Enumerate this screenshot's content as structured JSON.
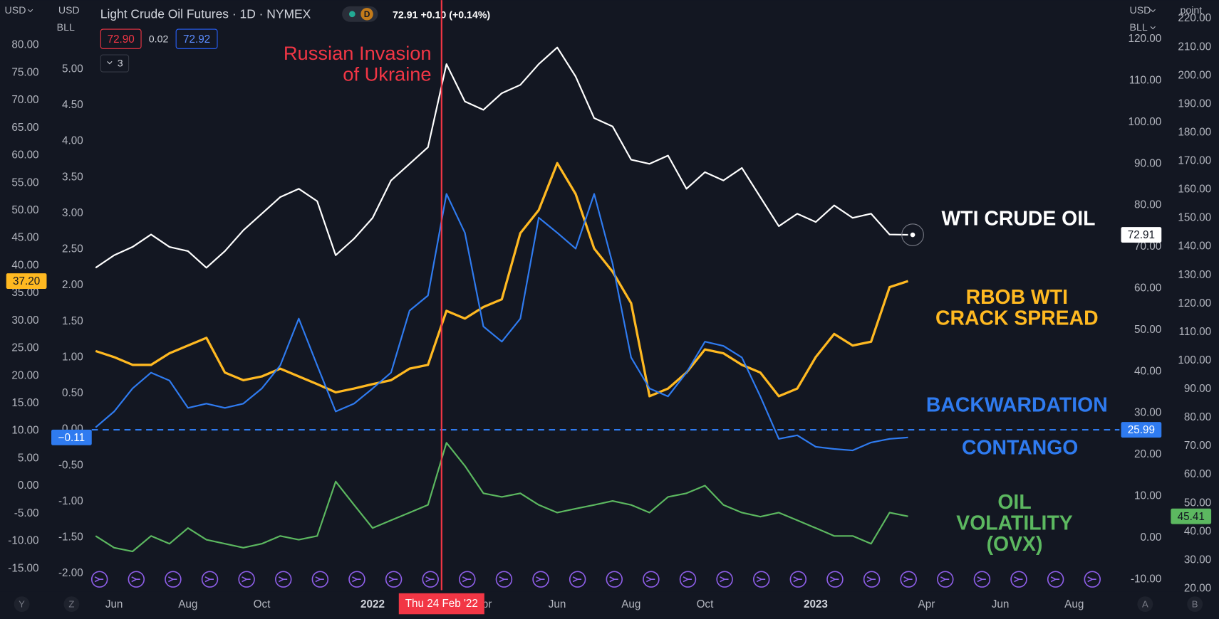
{
  "header": {
    "title": "Light Crude Oil Futures · 1D · NYMEX",
    "source_badge": "D",
    "quote": "72.91 +0.10 (+0.14%)",
    "bid": "72.90",
    "spread": "0.02",
    "ask": "72.92",
    "indicators": "3"
  },
  "axis_headers": {
    "left_1": "USD",
    "left_2_currency": "USD",
    "left_2_unit": "BLL",
    "right_1_currency": "USD",
    "right_1_unit": "BLL",
    "right_2": "point"
  },
  "footer": {
    "left_buttons": [
      "Y",
      "Z"
    ],
    "right_buttons": [
      "A",
      "B"
    ]
  },
  "chart_data": {
    "type": "line",
    "categories": [
      null,
      "Jun",
      null,
      null,
      null,
      "Aug",
      null,
      null,
      null,
      "Oct",
      null,
      null,
      null,
      null,
      null,
      "2022",
      null,
      null,
      null,
      null,
      null,
      "Apr",
      null,
      null,
      null,
      "Jun",
      null,
      null,
      null,
      "Aug",
      null,
      null,
      null,
      "Oct",
      null,
      null,
      null,
      null,
      null,
      "2023",
      null,
      null,
      null,
      null,
      null,
      "Apr",
      null,
      null,
      null,
      "Jun",
      null,
      null,
      null,
      "Aug",
      null
    ],
    "series": [
      {
        "name": "RBOB WTI CRACK SPREAD",
        "color": "#ffb921",
        "axis": "y",
        "last_label": "37.20",
        "values": [
          24.5,
          23.4,
          22.0,
          22.0,
          24.1,
          25.5,
          26.9,
          20.6,
          19.2,
          19.9,
          21.3,
          19.9,
          18.5,
          17.0,
          17.7,
          18.5,
          19.2,
          21.3,
          22.0,
          31.8,
          30.4,
          32.5,
          33.9,
          45.9,
          50.1,
          58.6,
          53.0,
          43.1,
          38.9,
          33.2,
          16.3,
          17.7,
          20.6,
          24.8,
          24.1,
          22.0,
          20.6,
          16.3,
          17.7,
          23.4,
          27.6,
          25.5,
          26.2,
          36.1,
          37.2,
          null,
          null,
          null,
          null,
          null,
          null,
          null,
          null,
          null,
          null
        ]
      },
      {
        "name": "BACKWARDATION",
        "color": "#2f7bf0",
        "axis": "y2",
        "last_label": "−0.11",
        "values": [
          0.03,
          0.25,
          0.57,
          0.79,
          0.68,
          0.3,
          0.36,
          0.3,
          0.36,
          0.57,
          0.89,
          1.54,
          0.89,
          0.25,
          0.36,
          0.57,
          0.79,
          1.65,
          1.86,
          3.27,
          2.73,
          1.43,
          1.22,
          1.54,
          2.94,
          2.73,
          2.51,
          3.27,
          2.3,
          1.0,
          0.57,
          0.46,
          0.79,
          1.22,
          1.16,
          1.0,
          0.46,
          -0.13,
          -0.08,
          -0.24,
          -0.27,
          -0.29,
          -0.18,
          -0.13,
          -0.11,
          null,
          null,
          null,
          null,
          null,
          null,
          null,
          null,
          null,
          null
        ]
      },
      {
        "name": "WTI CRUDE OIL",
        "color": "#ffffff",
        "axis": "y3",
        "values": [
          65,
          68,
          70,
          73,
          70,
          69,
          65,
          69,
          74,
          78,
          82,
          84,
          81,
          68,
          72,
          77,
          86,
          90,
          94,
          114,
          105,
          103,
          107,
          109,
          114,
          118,
          111,
          101,
          99,
          91,
          90,
          92,
          84,
          88,
          86,
          89,
          82,
          75,
          78,
          76,
          80,
          77,
          78,
          73,
          72.91,
          null,
          null,
          null,
          null,
          null,
          null,
          null,
          null,
          null,
          null
        ]
      },
      {
        "name": "OIL VOLATILITY (OVX)",
        "color": "#5cb860",
        "axis": "y4",
        "values": [
          38.5,
          34.4,
          33.1,
          38.5,
          35.8,
          41.3,
          37.2,
          35.8,
          34.4,
          35.8,
          38.5,
          37.2,
          38.5,
          57.6,
          49.4,
          41.3,
          44.0,
          46.7,
          49.4,
          71.2,
          63.1,
          53.5,
          52.2,
          53.5,
          49.4,
          46.7,
          48.1,
          49.4,
          50.8,
          49.4,
          46.7,
          52.2,
          53.5,
          56.2,
          49.4,
          46.7,
          45.3,
          46.7,
          44.0,
          41.3,
          38.5,
          38.5,
          35.8,
          46.7,
          45.41,
          null,
          null,
          null,
          null,
          null,
          null,
          null,
          null,
          null,
          null
        ]
      }
    ],
    "hline": {
      "value": 25.99,
      "axis": "y3",
      "color": "#2f7bf0"
    },
    "contango_label": "CONTANGO",
    "event": {
      "date_label": "Thu 24 Feb '22",
      "text": "Russian Invasion of Ukraine",
      "color": "#f23645"
    },
    "ylim": [
      -18.9,
      88.2
    ],
    "yticks": [
      {
        "value": -15,
        "label": "-15.00"
      },
      {
        "value": -10,
        "label": "-10.00"
      },
      {
        "value": -5,
        "label": "-5.00"
      },
      {
        "value": 0,
        "label": "0.00"
      },
      {
        "value": 5,
        "label": "5.00"
      },
      {
        "value": 10,
        "label": "10.00"
      },
      {
        "value": 15,
        "label": "15.00"
      },
      {
        "value": 20,
        "label": "20.00"
      },
      {
        "value": 25,
        "label": "25.00"
      },
      {
        "value": 30,
        "label": "30.00"
      },
      {
        "value": 35,
        "label": "35.00"
      },
      {
        "value": 40,
        "label": "40.00"
      },
      {
        "value": 45,
        "label": "45.00"
      },
      {
        "value": 50,
        "label": "50.00"
      },
      {
        "value": 55,
        "label": "55.00"
      },
      {
        "value": 60,
        "label": "60.00"
      },
      {
        "value": 65,
        "label": "65.00"
      },
      {
        "value": 70,
        "label": "70.00"
      },
      {
        "value": 75,
        "label": "75.00"
      },
      {
        "value": 80,
        "label": "80.00"
      }
    ],
    "y2lim": [
      -2.23,
      5.96
    ],
    "y2ticks": [
      {
        "value": -2,
        "label": "-2.00"
      },
      {
        "value": -1.5,
        "label": "-1.50"
      },
      {
        "value": -1,
        "label": "-1.00"
      },
      {
        "value": -0.5,
        "label": "-0.50"
      },
      {
        "value": 0,
        "label": "0.00"
      },
      {
        "value": 0.5,
        "label": "0.50"
      },
      {
        "value": 1,
        "label": "1.00"
      },
      {
        "value": 1.5,
        "label": "1.50"
      },
      {
        "value": 2,
        "label": "2.00"
      },
      {
        "value": 2.5,
        "label": "2.50"
      },
      {
        "value": 3,
        "label": "3.00"
      },
      {
        "value": 3.5,
        "label": "3.50"
      },
      {
        "value": 4,
        "label": "4.00"
      },
      {
        "value": 4.5,
        "label": "4.50"
      },
      {
        "value": 5,
        "label": "5.00"
      }
    ],
    "y3lim": [
      -12.6,
      129.4
    ],
    "y3ticks": [
      {
        "value": -10,
        "label": "-10.00"
      },
      {
        "value": 0,
        "label": "0.00"
      },
      {
        "value": 10,
        "label": "10.00"
      },
      {
        "value": 20,
        "label": "20.00"
      },
      {
        "value": 30,
        "label": "30.00"
      },
      {
        "value": 40,
        "label": "40.00"
      },
      {
        "value": 50,
        "label": "50.00"
      },
      {
        "value": 60,
        "label": "60.00"
      },
      {
        "value": 70,
        "label": "70.00"
      },
      {
        "value": 80,
        "label": "80.00"
      },
      {
        "value": 90,
        "label": "90.00"
      },
      {
        "value": 100,
        "label": "100.00"
      },
      {
        "value": 110,
        "label": "110.00"
      },
      {
        "value": 120,
        "label": "120.00"
      }
    ],
    "y4lim": [
      19.5,
      226.5
    ],
    "y4ticks": [
      {
        "value": 20,
        "label": "20.00"
      },
      {
        "value": 30,
        "label": "30.00"
      },
      {
        "value": 40,
        "label": "40.00"
      },
      {
        "value": 50,
        "label": "50.00"
      },
      {
        "value": 60,
        "label": "60.00"
      },
      {
        "value": 70,
        "label": "70.00"
      },
      {
        "value": 80,
        "label": "80.00"
      },
      {
        "value": 90,
        "label": "90.00"
      },
      {
        "value": 100,
        "label": "100.00"
      },
      {
        "value": 110,
        "label": "110.00"
      },
      {
        "value": 120,
        "label": "120.00"
      },
      {
        "value": 130,
        "label": "130.00"
      },
      {
        "value": 140,
        "label": "140.00"
      },
      {
        "value": 150,
        "label": "150.00"
      },
      {
        "value": 160,
        "label": "160.00"
      },
      {
        "value": 170,
        "label": "170.00"
      },
      {
        "value": 180,
        "label": "180.00"
      },
      {
        "value": 190,
        "label": "190.00"
      },
      {
        "value": 200,
        "label": "200.00"
      },
      {
        "value": 210,
        "label": "210.00"
      },
      {
        "value": 220,
        "label": "220.00"
      }
    ]
  }
}
